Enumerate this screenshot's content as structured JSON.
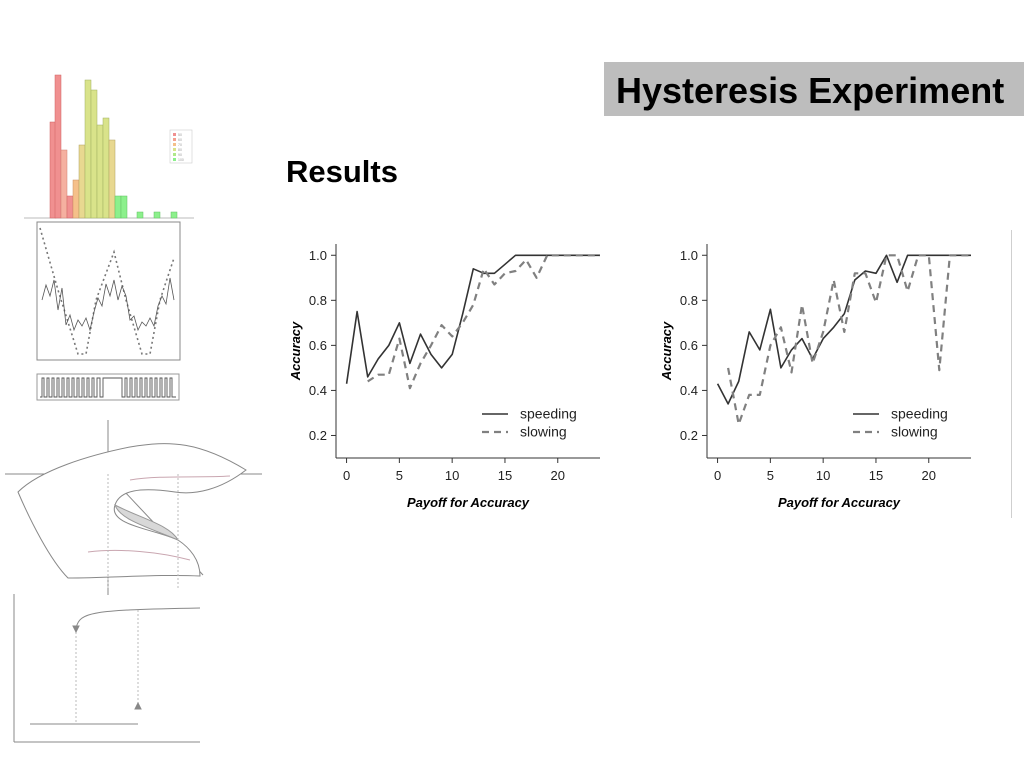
{
  "slide": {
    "title": "Hysteresis Experiment",
    "subtitle": "Results"
  },
  "decor_histogram_legend": [
    "50",
    "60",
    "70",
    "80",
    "90",
    "100"
  ],
  "colors": {
    "title_bg": "#bdbdbd",
    "line": "#333333",
    "hist_red": "#f08c8c",
    "hist_orange": "#f5c08a",
    "hist_yellow": "#d9e38a",
    "hist_green": "#8cf08c"
  },
  "chart_data": [
    {
      "type": "line",
      "xlabel": "Payoff for Accuracy",
      "ylabel": "Accuracy",
      "xlim": [
        -1,
        24
      ],
      "ylim": [
        0.1,
        1.05
      ],
      "xticks": [
        0,
        5,
        10,
        15,
        20
      ],
      "yticks": [
        0.2,
        0.4,
        0.6,
        0.8,
        1.0
      ],
      "grid": false,
      "legend_position": "bottom-right",
      "series": [
        {
          "name": "speeding",
          "style": "solid",
          "x": [
            0,
            1,
            2,
            3,
            4,
            5,
            6,
            7,
            8,
            9,
            10,
            11,
            12,
            13,
            14,
            15,
            16,
            17,
            18,
            19,
            20,
            21,
            22,
            23,
            24
          ],
          "y": [
            0.43,
            0.75,
            0.46,
            0.54,
            0.6,
            0.7,
            0.52,
            0.65,
            0.56,
            0.5,
            0.56,
            0.74,
            0.94,
            0.92,
            0.92,
            0.96,
            1.0,
            1.0,
            1.0,
            1.0,
            1.0,
            1.0,
            1.0,
            1.0,
            1.0
          ]
        },
        {
          "name": "slowing",
          "style": "dashed",
          "x": [
            2,
            3,
            4,
            5,
            6,
            7,
            8,
            9,
            10,
            11,
            12,
            13,
            14,
            15,
            16,
            17,
            18,
            19,
            20,
            21,
            22,
            23,
            24
          ],
          "y": [
            0.44,
            0.47,
            0.47,
            0.63,
            0.41,
            0.52,
            0.6,
            0.69,
            0.64,
            0.7,
            0.78,
            0.94,
            0.87,
            0.92,
            0.93,
            0.98,
            0.9,
            1.0,
            1.0,
            1.0,
            1.0,
            1.0,
            1.0
          ]
        }
      ]
    },
    {
      "type": "line",
      "xlabel": "Payoff for Accuracy",
      "ylabel": "Accuracy",
      "xlim": [
        -1,
        24
      ],
      "ylim": [
        0.1,
        1.05
      ],
      "xticks": [
        0,
        5,
        10,
        15,
        20
      ],
      "yticks": [
        0.2,
        0.4,
        0.6,
        0.8,
        1.0
      ],
      "grid": false,
      "legend_position": "bottom-right",
      "series": [
        {
          "name": "speeding",
          "style": "solid",
          "x": [
            0,
            1,
            2,
            3,
            4,
            5,
            6,
            7,
            8,
            9,
            10,
            11,
            12,
            13,
            14,
            15,
            16,
            17,
            18,
            19,
            20,
            21,
            22,
            23,
            24
          ],
          "y": [
            0.43,
            0.34,
            0.44,
            0.66,
            0.58,
            0.76,
            0.5,
            0.58,
            0.63,
            0.54,
            0.63,
            0.68,
            0.74,
            0.89,
            0.93,
            0.92,
            1.0,
            0.88,
            1.0,
            1.0,
            1.0,
            1.0,
            1.0,
            1.0,
            1.0
          ]
        },
        {
          "name": "slowing",
          "style": "dashed",
          "x": [
            1,
            2,
            3,
            4,
            5,
            6,
            7,
            8,
            9,
            10,
            11,
            12,
            13,
            14,
            15,
            16,
            17,
            18,
            19,
            20,
            21,
            22,
            23,
            24
          ],
          "y": [
            0.5,
            0.25,
            0.38,
            0.38,
            0.6,
            0.68,
            0.48,
            0.78,
            0.52,
            0.66,
            0.89,
            0.66,
            0.92,
            0.92,
            0.79,
            1.0,
            1.0,
            0.84,
            1.0,
            1.0,
            0.49,
            1.0,
            1.0,
            1.0
          ]
        }
      ]
    }
  ]
}
